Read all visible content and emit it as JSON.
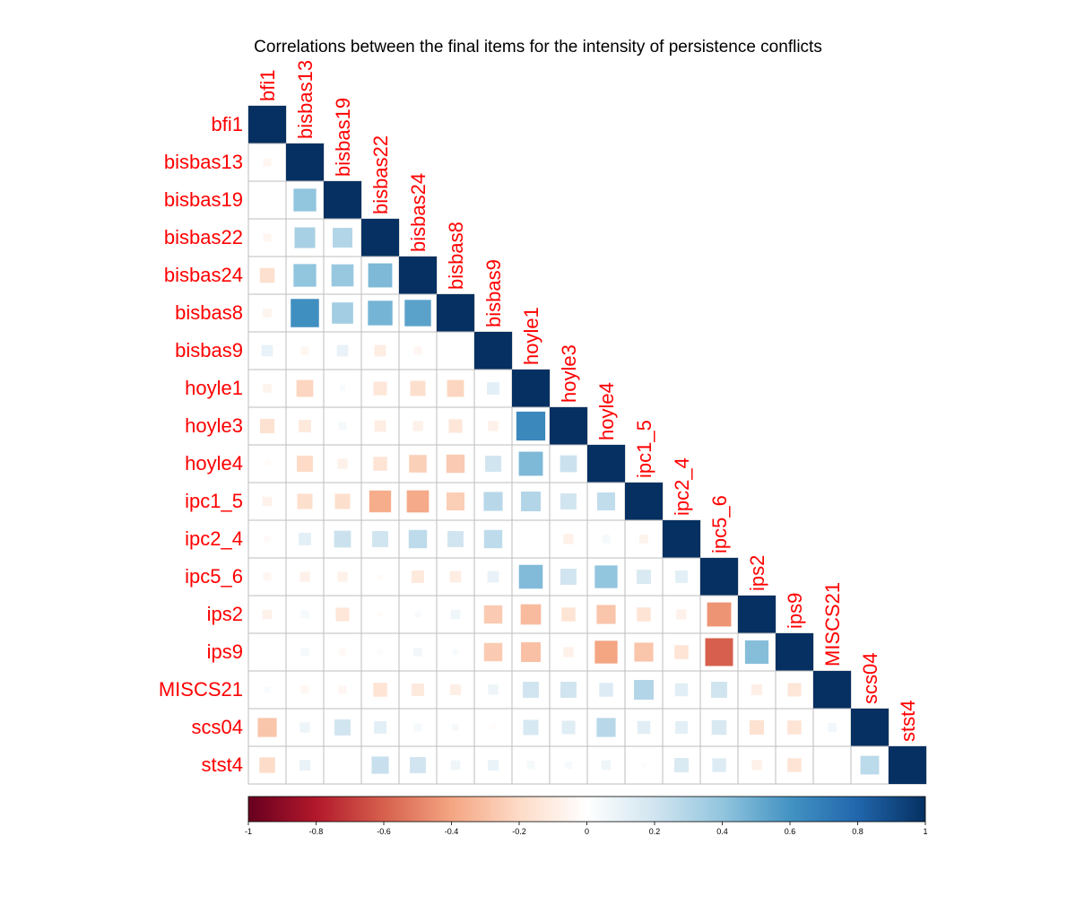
{
  "chart_data": {
    "type": "heatmap",
    "title": "Correlations between the final items for the intensity of persistence conflicts",
    "variables": [
      "bfi1",
      "bisbas13",
      "bisbas19",
      "bisbas22",
      "bisbas24",
      "bisbas8",
      "bisbas9",
      "hoyle1",
      "hoyle3",
      "hoyle4",
      "ipc1_5",
      "ipc2_4",
      "ipc5_6",
      "ips2",
      "ips9",
      "MISCS21",
      "scs04",
      "stst4"
    ],
    "lower_triangle_rows": [
      [
        1
      ],
      [
        -0.05,
        1
      ],
      [
        0.0,
        0.4,
        1
      ],
      [
        -0.05,
        0.33,
        0.3,
        1
      ],
      [
        -0.17,
        0.4,
        0.38,
        0.45,
        1
      ],
      [
        -0.06,
        0.62,
        0.35,
        0.47,
        0.54,
        1
      ],
      [
        0.1,
        -0.05,
        0.1,
        -0.1,
        -0.05,
        0.0,
        1
      ],
      [
        -0.06,
        -0.22,
        0.03,
        -0.14,
        -0.18,
        -0.22,
        0.12,
        1
      ],
      [
        -0.16,
        -0.12,
        0.05,
        -0.1,
        -0.08,
        -0.14,
        -0.08,
        0.65,
        1
      ],
      [
        -0.02,
        -0.2,
        -0.08,
        -0.15,
        -0.24,
        -0.26,
        0.2,
        0.45,
        0.22,
        1
      ],
      [
        -0.07,
        -0.18,
        -0.18,
        -0.37,
        -0.38,
        -0.25,
        0.28,
        0.3,
        0.2,
        0.25,
        1
      ],
      [
        -0.03,
        0.12,
        0.22,
        0.2,
        0.26,
        0.2,
        0.26,
        0.0,
        -0.08,
        0.05,
        -0.06,
        1
      ],
      [
        -0.05,
        -0.08,
        -0.08,
        -0.02,
        -0.12,
        -0.1,
        0.1,
        0.44,
        0.2,
        0.4,
        0.16,
        0.12,
        1
      ],
      [
        -0.07,
        0.05,
        -0.14,
        -0.02,
        0.03,
        0.07,
        -0.26,
        -0.32,
        -0.15,
        -0.28,
        -0.15,
        -0.08,
        -0.45,
        1
      ],
      [
        0.0,
        0.05,
        -0.04,
        0.02,
        0.06,
        0.03,
        -0.26,
        -0.3,
        -0.08,
        -0.4,
        -0.28,
        -0.15,
        -0.6,
        0.43,
        1
      ],
      [
        0.03,
        -0.05,
        -0.05,
        -0.15,
        -0.12,
        -0.09,
        0.08,
        0.2,
        0.2,
        0.15,
        0.3,
        0.13,
        0.2,
        -0.09,
        -0.14,
        1
      ],
      [
        -0.28,
        0.08,
        0.2,
        0.12,
        0.05,
        0.04,
        -0.02,
        0.18,
        0.14,
        0.28,
        0.13,
        0.12,
        0.17,
        -0.16,
        -0.15,
        0.06,
        1
      ],
      [
        -0.19,
        0.09,
        0.0,
        0.23,
        0.2,
        0.07,
        0.09,
        0.05,
        0.04,
        0.07,
        0.02,
        0.16,
        0.15,
        -0.08,
        -0.15,
        0.0,
        0.27,
        1
      ]
    ],
    "colorbar": {
      "range": [
        -1,
        1
      ],
      "ticks": [
        "-1",
        "-0.8",
        "-0.6",
        "-0.4",
        "-0.2",
        "0",
        "0.2",
        "0.4",
        "0.6",
        "0.8",
        "1"
      ],
      "negative_color": "#67001F",
      "zero_color": "#FFFFFF",
      "positive_color": "#053061"
    },
    "label_color": "#FF0000",
    "grid_color": "#BEBEBE",
    "method": "square",
    "layout": "lower"
  }
}
